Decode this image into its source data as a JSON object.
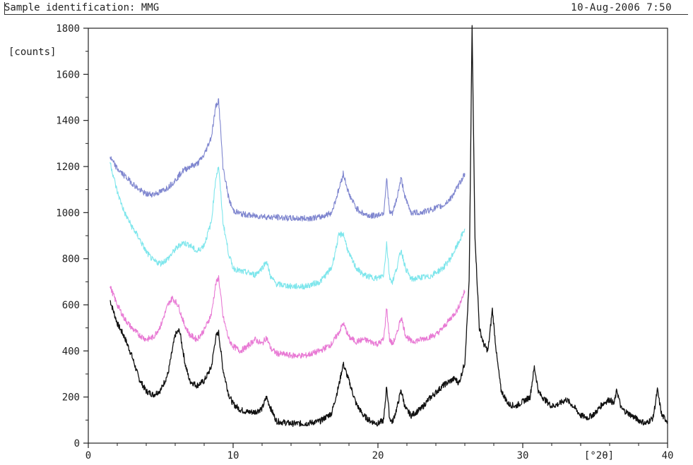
{
  "header": {
    "sample_label": "Sample identification: MMG",
    "datetime": "10-Aug-2006  7:50"
  },
  "chart_data": {
    "type": "line",
    "title": "",
    "xlabel": "[°2θ]",
    "ylabel": "[counts]",
    "xlim": [
      0,
      40
    ],
    "ylim": [
      0,
      1800
    ],
    "x_ticks": [
      0,
      10,
      20,
      30,
      40
    ],
    "y_ticks": [
      0,
      200,
      400,
      600,
      800,
      1000,
      1200,
      1400,
      1600,
      1800
    ],
    "grid": false,
    "legend": "none",
    "series": [
      {
        "color": "#111111",
        "points": [
          [
            1.5,
            620
          ],
          [
            2,
            520
          ],
          [
            2.5,
            460
          ],
          [
            3,
            380
          ],
          [
            3.5,
            280
          ],
          [
            4,
            225
          ],
          [
            4.5,
            210
          ],
          [
            5,
            230
          ],
          [
            5.5,
            300
          ],
          [
            6,
            470
          ],
          [
            6.3,
            490
          ],
          [
            6.7,
            340
          ],
          [
            7,
            270
          ],
          [
            7.5,
            250
          ],
          [
            8,
            270
          ],
          [
            8.5,
            330
          ],
          [
            8.8,
            460
          ],
          [
            9,
            480
          ],
          [
            9.3,
            320
          ],
          [
            9.7,
            210
          ],
          [
            10,
            170
          ],
          [
            10.5,
            145
          ],
          [
            11,
            135
          ],
          [
            11.5,
            135
          ],
          [
            12,
            150
          ],
          [
            12.3,
            200
          ],
          [
            12.6,
            150
          ],
          [
            13,
            95
          ],
          [
            14,
            85
          ],
          [
            15,
            85
          ],
          [
            16,
            95
          ],
          [
            16.8,
            130
          ],
          [
            17.3,
            250
          ],
          [
            17.6,
            345
          ],
          [
            18,
            270
          ],
          [
            18.5,
            170
          ],
          [
            19,
            120
          ],
          [
            19.5,
            95
          ],
          [
            20,
            85
          ],
          [
            20.4,
            100
          ],
          [
            20.6,
            250
          ],
          [
            20.8,
            110
          ],
          [
            21,
            90
          ],
          [
            21.3,
            150
          ],
          [
            21.6,
            230
          ],
          [
            21.9,
            150
          ],
          [
            22.3,
            120
          ],
          [
            23,
            150
          ],
          [
            23.5,
            190
          ],
          [
            24,
            220
          ],
          [
            24.5,
            250
          ],
          [
            25,
            270
          ],
          [
            25.3,
            280
          ],
          [
            25.6,
            260
          ],
          [
            26,
            350
          ],
          [
            26.3,
            700
          ],
          [
            26.5,
            1800
          ],
          [
            26.7,
            900
          ],
          [
            27,
            500
          ],
          [
            27.3,
            430
          ],
          [
            27.6,
            400
          ],
          [
            27.9,
            580
          ],
          [
            28.2,
            380
          ],
          [
            28.5,
            230
          ],
          [
            29,
            170
          ],
          [
            29.5,
            160
          ],
          [
            30,
            180
          ],
          [
            30.5,
            200
          ],
          [
            30.8,
            330
          ],
          [
            31.1,
            220
          ],
          [
            31.5,
            190
          ],
          [
            32,
            160
          ],
          [
            32.5,
            170
          ],
          [
            33,
            190
          ],
          [
            33.5,
            160
          ],
          [
            34,
            120
          ],
          [
            34.5,
            110
          ],
          [
            35,
            130
          ],
          [
            35.5,
            170
          ],
          [
            36,
            190
          ],
          [
            36.3,
            170
          ],
          [
            36.5,
            230
          ],
          [
            36.8,
            150
          ],
          [
            37.5,
            120
          ],
          [
            38,
            100
          ],
          [
            38.5,
            85
          ],
          [
            39,
            110
          ],
          [
            39.3,
            230
          ],
          [
            39.6,
            120
          ],
          [
            40,
            95
          ]
        ]
      },
      {
        "color": "#e879d4",
        "points": [
          [
            1.5,
            680
          ],
          [
            2,
            600
          ],
          [
            2.5,
            540
          ],
          [
            3,
            500
          ],
          [
            3.5,
            470
          ],
          [
            4,
            450
          ],
          [
            4.5,
            460
          ],
          [
            5,
            510
          ],
          [
            5.5,
            600
          ],
          [
            5.8,
            630
          ],
          [
            6.2,
            600
          ],
          [
            6.6,
            520
          ],
          [
            7,
            470
          ],
          [
            7.5,
            450
          ],
          [
            8,
            490
          ],
          [
            8.5,
            560
          ],
          [
            8.8,
            690
          ],
          [
            9,
            720
          ],
          [
            9.3,
            550
          ],
          [
            9.7,
            450
          ],
          [
            10,
            420
          ],
          [
            10.5,
            400
          ],
          [
            11,
            420
          ],
          [
            11.5,
            450
          ],
          [
            12,
            430
          ],
          [
            12.3,
            460
          ],
          [
            12.6,
            410
          ],
          [
            13,
            390
          ],
          [
            14,
            380
          ],
          [
            15,
            380
          ],
          [
            16,
            400
          ],
          [
            16.8,
            430
          ],
          [
            17.3,
            480
          ],
          [
            17.6,
            520
          ],
          [
            18,
            460
          ],
          [
            18.5,
            440
          ],
          [
            19,
            450
          ],
          [
            19.5,
            440
          ],
          [
            20,
            430
          ],
          [
            20.4,
            450
          ],
          [
            20.6,
            590
          ],
          [
            20.8,
            450
          ],
          [
            21,
            430
          ],
          [
            21.3,
            470
          ],
          [
            21.6,
            550
          ],
          [
            21.9,
            470
          ],
          [
            22.3,
            440
          ],
          [
            23,
            450
          ],
          [
            23.5,
            460
          ],
          [
            24,
            470
          ],
          [
            24.5,
            500
          ],
          [
            25,
            540
          ],
          [
            25.5,
            580
          ],
          [
            26,
            660
          ]
        ]
      },
      {
        "color": "#7ee6ec",
        "points": [
          [
            1.5,
            1220
          ],
          [
            2,
            1090
          ],
          [
            2.5,
            1000
          ],
          [
            3,
            940
          ],
          [
            3.5,
            890
          ],
          [
            4,
            830
          ],
          [
            4.5,
            790
          ],
          [
            5,
            780
          ],
          [
            5.5,
            800
          ],
          [
            6,
            840
          ],
          [
            6.5,
            870
          ],
          [
            7,
            860
          ],
          [
            7.5,
            830
          ],
          [
            8,
            860
          ],
          [
            8.5,
            960
          ],
          [
            8.8,
            1150
          ],
          [
            9,
            1200
          ],
          [
            9.3,
            960
          ],
          [
            9.7,
            820
          ],
          [
            10,
            760
          ],
          [
            10.5,
            745
          ],
          [
            11,
            740
          ],
          [
            11.5,
            730
          ],
          [
            12,
            760
          ],
          [
            12.3,
            790
          ],
          [
            12.6,
            720
          ],
          [
            13,
            690
          ],
          [
            14,
            680
          ],
          [
            15,
            680
          ],
          [
            16,
            700
          ],
          [
            16.8,
            760
          ],
          [
            17.3,
            900
          ],
          [
            17.6,
            910
          ],
          [
            18,
            820
          ],
          [
            18.5,
            760
          ],
          [
            19,
            730
          ],
          [
            19.5,
            720
          ],
          [
            20,
            715
          ],
          [
            20.4,
            730
          ],
          [
            20.6,
            870
          ],
          [
            20.8,
            720
          ],
          [
            21,
            700
          ],
          [
            21.3,
            760
          ],
          [
            21.6,
            840
          ],
          [
            21.9,
            760
          ],
          [
            22.3,
            710
          ],
          [
            23,
            720
          ],
          [
            23.5,
            720
          ],
          [
            24,
            740
          ],
          [
            24.5,
            760
          ],
          [
            25,
            800
          ],
          [
            25.5,
            860
          ],
          [
            26,
            930
          ]
        ]
      },
      {
        "color": "#7f86cf",
        "points": [
          [
            1.5,
            1240
          ],
          [
            2,
            1190
          ],
          [
            2.5,
            1160
          ],
          [
            3,
            1130
          ],
          [
            3.5,
            1100
          ],
          [
            4,
            1080
          ],
          [
            4.5,
            1080
          ],
          [
            5,
            1090
          ],
          [
            5.5,
            1110
          ],
          [
            6,
            1140
          ],
          [
            6.5,
            1180
          ],
          [
            7,
            1200
          ],
          [
            7.5,
            1210
          ],
          [
            8,
            1250
          ],
          [
            8.5,
            1330
          ],
          [
            8.8,
            1460
          ],
          [
            9,
            1490
          ],
          [
            9.3,
            1200
          ],
          [
            9.7,
            1060
          ],
          [
            10,
            1010
          ],
          [
            10.5,
            995
          ],
          [
            11,
            990
          ],
          [
            11.5,
            985
          ],
          [
            12,
            985
          ],
          [
            12.5,
            980
          ],
          [
            13,
            980
          ],
          [
            14,
            975
          ],
          [
            15,
            975
          ],
          [
            16,
            980
          ],
          [
            16.8,
            1000
          ],
          [
            17.3,
            1100
          ],
          [
            17.6,
            1170
          ],
          [
            18,
            1080
          ],
          [
            18.5,
            1020
          ],
          [
            19,
            995
          ],
          [
            19.5,
            985
          ],
          [
            20,
            990
          ],
          [
            20.4,
            1000
          ],
          [
            20.6,
            1150
          ],
          [
            20.8,
            1000
          ],
          [
            21,
            995
          ],
          [
            21.3,
            1060
          ],
          [
            21.6,
            1150
          ],
          [
            21.9,
            1060
          ],
          [
            22.3,
            1000
          ],
          [
            23,
            1000
          ],
          [
            23.5,
            1010
          ],
          [
            24,
            1020
          ],
          [
            24.5,
            1030
          ],
          [
            25,
            1060
          ],
          [
            25.5,
            1110
          ],
          [
            26,
            1170
          ]
        ]
      }
    ]
  }
}
